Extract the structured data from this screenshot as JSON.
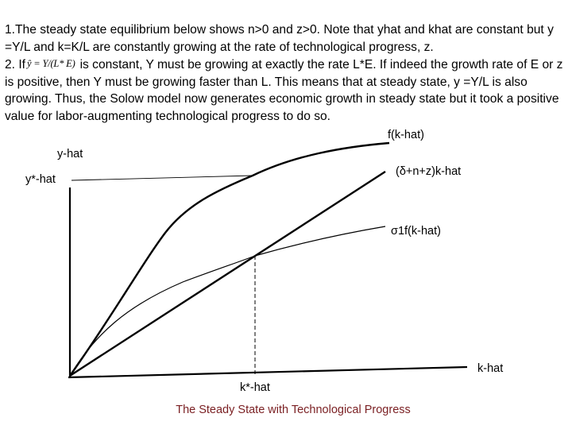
{
  "text": {
    "para1": "1.The steady state equilibrium below shows n>0 and z>0. Note that yhat and khat are constant but y =Y/L and k=K/L are constantly growing at the rate of technological progress, z.",
    "para2_prefix": "2. If",
    "formula": "ŷ = Y/(L* E)",
    "para2_rest": "is constant, Y must be growing at exactly the rate L*E. If indeed the growth rate of E or z is positive, then Y must be growing faster than L. This means that at steady state, y =Y/L is also growing. Thus, the Solow model now generates economic growth in steady state but it took a positive value for labor-augmenting technological progress to do so."
  },
  "diagram": {
    "y_axis_label": "y-hat",
    "x_axis_label": "k-hat",
    "y_star_label": "y*-hat",
    "k_star_label": "k*-hat",
    "curve_production_label": "f(k-hat)",
    "curve_investment_line_label": "(δ+n+z)k-hat",
    "curve_saving_label": "σ1f(k-hat)",
    "caption": "The Steady State with Technological Progress",
    "caption_color": "#7a1f22"
  }
}
